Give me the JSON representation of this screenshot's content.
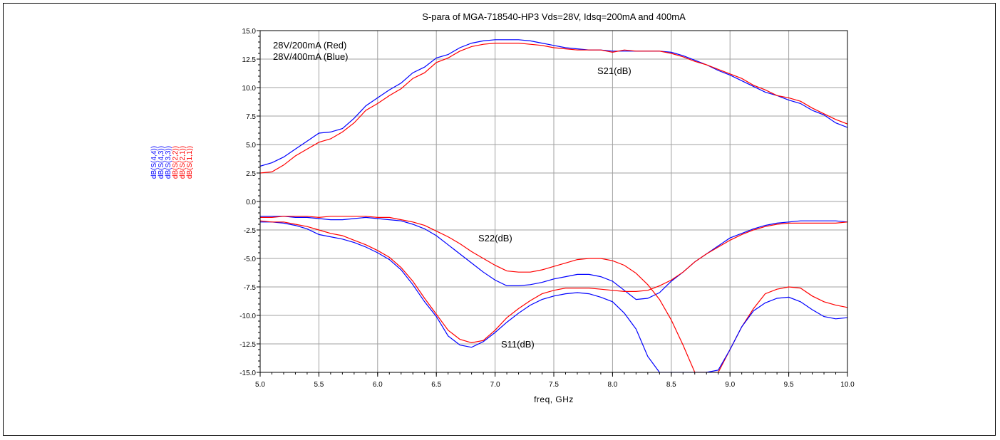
{
  "chart_data": {
    "type": "line",
    "title": "S-para of MGA-718540-HP3 Vds=28V, Idsq=200mA and 400mA",
    "xlabel": "freq, GHz",
    "xlim": [
      5.0,
      10.0
    ],
    "ylim": [
      -15.0,
      15.0
    ],
    "x_ticks": [
      "5.0",
      "5.5",
      "6.0",
      "6.5",
      "7.0",
      "7.5",
      "8.0",
      "8.5",
      "9.0",
      "9.5",
      "10.0"
    ],
    "y_ticks": [
      "15.0",
      "12.5",
      "10.0",
      "7.5",
      "5.0",
      "2.5",
      "0.0",
      "-2.5",
      "-5.0",
      "-7.5",
      "-10.0",
      "-12.5",
      "-15.0"
    ],
    "grid": true,
    "ylabel_entries": [
      {
        "label": "dB(S(4,4))",
        "color": "#0000ff"
      },
      {
        "label": "dB(S(4,3))",
        "color": "#0000ff"
      },
      {
        "label": "dB(S(3,3))",
        "color": "#0000ff"
      },
      {
        "label": "dB(S(2,2))",
        "color": "#ff0000"
      },
      {
        "label": "dB(S(2,1))",
        "color": "#ff0000"
      },
      {
        "label": "dB(S(1,1))",
        "color": "#ff0000"
      }
    ],
    "annotations": {
      "legend_red": "28V/200mA (Red)",
      "legend_blue": "28V/400mA (Blue)",
      "s21": "S21(dB)",
      "s22": "S22(dB)",
      "s11": "S11(dB)"
    },
    "series": [
      {
        "color": "#0000ff",
        "x": [
          5.0,
          5.1,
          5.2,
          5.3,
          5.4,
          5.5,
          5.6,
          5.7,
          5.8,
          5.9,
          6.0,
          6.1,
          6.2,
          6.3,
          6.4,
          6.5,
          6.6,
          6.7,
          6.8,
          6.9,
          7.0,
          7.1,
          7.2,
          7.3,
          7.4,
          7.5,
          7.6,
          7.7,
          7.8,
          7.9,
          8.0,
          8.1,
          8.2,
          8.3,
          8.4,
          8.5,
          8.6,
          8.7,
          8.8,
          8.9,
          9.0,
          9.1,
          9.2,
          9.3,
          9.4,
          9.5,
          9.6,
          9.7,
          9.8,
          9.9,
          10.0
        ],
        "y": [
          3.1,
          3.4,
          3.9,
          4.6,
          5.3,
          6.0,
          6.1,
          6.4,
          7.3,
          8.4,
          9.1,
          9.8,
          10.4,
          11.3,
          11.8,
          12.6,
          12.9,
          13.5,
          13.9,
          14.1,
          14.2,
          14.2,
          14.2,
          14.1,
          13.9,
          13.7,
          13.5,
          13.4,
          13.3,
          13.3,
          13.2,
          13.2,
          13.2,
          13.2,
          13.2,
          13.1,
          12.8,
          12.4,
          12.0,
          11.5,
          11.1,
          10.6,
          10.1,
          9.6,
          9.3,
          8.9,
          8.6,
          8.0,
          7.6,
          6.9,
          6.5
        ]
      },
      {
        "color": "#ff0000",
        "x": [
          5.0,
          5.1,
          5.2,
          5.3,
          5.4,
          5.5,
          5.6,
          5.7,
          5.8,
          5.9,
          6.0,
          6.1,
          6.2,
          6.3,
          6.4,
          6.5,
          6.6,
          6.7,
          6.8,
          6.9,
          7.0,
          7.1,
          7.2,
          7.3,
          7.4,
          7.5,
          7.6,
          7.7,
          7.8,
          7.9,
          8.0,
          8.1,
          8.2,
          8.3,
          8.4,
          8.5,
          8.6,
          8.7,
          8.8,
          8.9,
          9.0,
          9.1,
          9.2,
          9.3,
          9.4,
          9.5,
          9.6,
          9.7,
          9.8,
          9.9,
          10.0
        ],
        "y": [
          2.5,
          2.6,
          3.2,
          4.0,
          4.6,
          5.2,
          5.5,
          6.1,
          6.9,
          8.0,
          8.6,
          9.3,
          9.9,
          10.8,
          11.3,
          12.2,
          12.6,
          13.2,
          13.6,
          13.8,
          13.9,
          13.9,
          13.9,
          13.8,
          13.7,
          13.5,
          13.4,
          13.3,
          13.3,
          13.3,
          13.1,
          13.3,
          13.2,
          13.2,
          13.2,
          13.0,
          12.7,
          12.3,
          12.0,
          11.6,
          11.2,
          10.8,
          10.2,
          9.8,
          9.3,
          9.1,
          8.8,
          8.2,
          7.7,
          7.2,
          6.8
        ]
      },
      {
        "color": "#0000ff",
        "x": [
          5.0,
          5.1,
          5.2,
          5.3,
          5.4,
          5.5,
          5.6,
          5.7,
          5.8,
          5.9,
          6.0,
          6.1,
          6.2,
          6.3,
          6.4,
          6.5,
          6.6,
          6.7,
          6.8,
          6.9,
          7.0,
          7.1,
          7.2,
          7.3,
          7.4,
          7.5,
          7.6,
          7.7,
          7.8,
          7.9,
          8.0,
          8.1,
          8.2,
          8.3,
          8.4,
          8.5,
          8.6,
          8.7,
          8.8,
          8.9,
          9.0,
          9.1,
          9.2,
          9.3,
          9.4,
          9.5,
          9.6,
          9.7,
          9.8,
          9.9,
          10.0
        ],
        "y": [
          -1.3,
          -1.3,
          -1.3,
          -1.4,
          -1.4,
          -1.5,
          -1.6,
          -1.6,
          -1.5,
          -1.4,
          -1.5,
          -1.6,
          -1.7,
          -2.0,
          -2.4,
          -3.0,
          -3.8,
          -4.6,
          -5.4,
          -6.2,
          -6.9,
          -7.4,
          -7.4,
          -7.3,
          -7.1,
          -6.8,
          -6.6,
          -6.4,
          -6.4,
          -6.6,
          -7.0,
          -7.8,
          -8.6,
          -8.5,
          -8.0,
          -7.0,
          -6.2,
          -5.3,
          -4.6,
          -3.9,
          -3.2,
          -2.8,
          -2.4,
          -2.1,
          -1.9,
          -1.8,
          -1.7,
          -1.7,
          -1.7,
          -1.7,
          -1.8
        ]
      },
      {
        "color": "#ff0000",
        "x": [
          5.0,
          5.1,
          5.2,
          5.3,
          5.4,
          5.5,
          5.6,
          5.7,
          5.8,
          5.9,
          6.0,
          6.1,
          6.2,
          6.3,
          6.4,
          6.5,
          6.6,
          6.7,
          6.8,
          6.9,
          7.0,
          7.1,
          7.2,
          7.3,
          7.4,
          7.5,
          7.6,
          7.7,
          7.8,
          7.9,
          8.0,
          8.1,
          8.2,
          8.3,
          8.4,
          8.5,
          8.6,
          8.7,
          8.8,
          8.9,
          9.0,
          9.1,
          9.2,
          9.3,
          9.4,
          9.5,
          9.6,
          9.7,
          9.8,
          9.9,
          10.0
        ],
        "y": [
          -1.4,
          -1.4,
          -1.3,
          -1.3,
          -1.3,
          -1.4,
          -1.3,
          -1.3,
          -1.3,
          -1.3,
          -1.4,
          -1.4,
          -1.6,
          -1.8,
          -2.1,
          -2.6,
          -3.1,
          -3.7,
          -4.4,
          -5.0,
          -5.6,
          -6.1,
          -6.2,
          -6.2,
          -6.0,
          -5.7,
          -5.4,
          -5.1,
          -5.0,
          -5.0,
          -5.2,
          -5.6,
          -6.3,
          -7.3,
          -8.6,
          -10.4,
          -12.6,
          -15.0,
          -15.0,
          -15.0,
          -13.0,
          -11.0,
          -9.4,
          -8.1,
          -7.7,
          -7.5,
          -7.6,
          -8.3,
          -8.8,
          -9.1,
          -9.3
        ]
      },
      {
        "color": "#0000ff",
        "x": [
          5.0,
          5.1,
          5.2,
          5.3,
          5.4,
          5.5,
          5.6,
          5.7,
          5.8,
          5.9,
          6.0,
          6.1,
          6.2,
          6.3,
          6.4,
          6.5,
          6.6,
          6.7,
          6.8,
          6.9,
          7.0,
          7.1,
          7.2,
          7.3,
          7.4,
          7.5,
          7.6,
          7.7,
          7.8,
          7.9,
          8.0,
          8.1,
          8.2,
          8.3,
          8.4,
          8.5,
          8.6,
          8.7,
          8.8,
          8.9,
          9.0,
          9.1,
          9.2,
          9.3,
          9.4,
          9.5,
          9.6,
          9.7,
          9.8,
          9.9,
          10.0
        ],
        "y": [
          -1.8,
          -1.8,
          -1.9,
          -2.1,
          -2.4,
          -2.9,
          -3.1,
          -3.3,
          -3.6,
          -4.0,
          -4.5,
          -5.1,
          -6.0,
          -7.3,
          -8.8,
          -10.1,
          -11.8,
          -12.6,
          -12.8,
          -12.3,
          -11.5,
          -10.6,
          -9.8,
          -9.1,
          -8.6,
          -8.3,
          -8.1,
          -8.0,
          -8.1,
          -8.4,
          -8.8,
          -9.8,
          -11.2,
          -13.6,
          -15.0,
          -15.0,
          -15.0,
          -15.0,
          -15.0,
          -14.8,
          -13.0,
          -11.0,
          -9.6,
          -8.9,
          -8.5,
          -8.4,
          -8.8,
          -9.5,
          -10.1,
          -10.3,
          -10.2
        ]
      },
      {
        "color": "#ff0000",
        "x": [
          5.0,
          5.1,
          5.2,
          5.3,
          5.4,
          5.5,
          5.6,
          5.7,
          5.8,
          5.9,
          6.0,
          6.1,
          6.2,
          6.3,
          6.4,
          6.5,
          6.6,
          6.7,
          6.8,
          6.9,
          7.0,
          7.1,
          7.2,
          7.3,
          7.4,
          7.5,
          7.6,
          7.7,
          7.8,
          7.9,
          8.0,
          8.1,
          8.2,
          8.3,
          8.4,
          8.5,
          8.6,
          8.7,
          8.8,
          8.9,
          9.0,
          9.1,
          9.2,
          9.3,
          9.4,
          9.5,
          9.6,
          9.7,
          9.8,
          9.9,
          10.0
        ],
        "y": [
          -1.7,
          -1.8,
          -1.8,
          -2.0,
          -2.2,
          -2.5,
          -2.8,
          -3.0,
          -3.4,
          -3.8,
          -4.3,
          -4.9,
          -5.8,
          -7.0,
          -8.5,
          -9.9,
          -11.3,
          -12.1,
          -12.4,
          -12.2,
          -11.3,
          -10.2,
          -9.4,
          -8.7,
          -8.1,
          -7.8,
          -7.6,
          -7.6,
          -7.6,
          -7.7,
          -7.8,
          -7.9,
          -7.9,
          -7.8,
          -7.4,
          -6.9,
          -6.2,
          -5.3,
          -4.6,
          -4.0,
          -3.4,
          -2.9,
          -2.5,
          -2.2,
          -2.0,
          -1.9,
          -1.9,
          -1.9,
          -1.9,
          -1.9,
          -1.8
        ]
      }
    ]
  }
}
